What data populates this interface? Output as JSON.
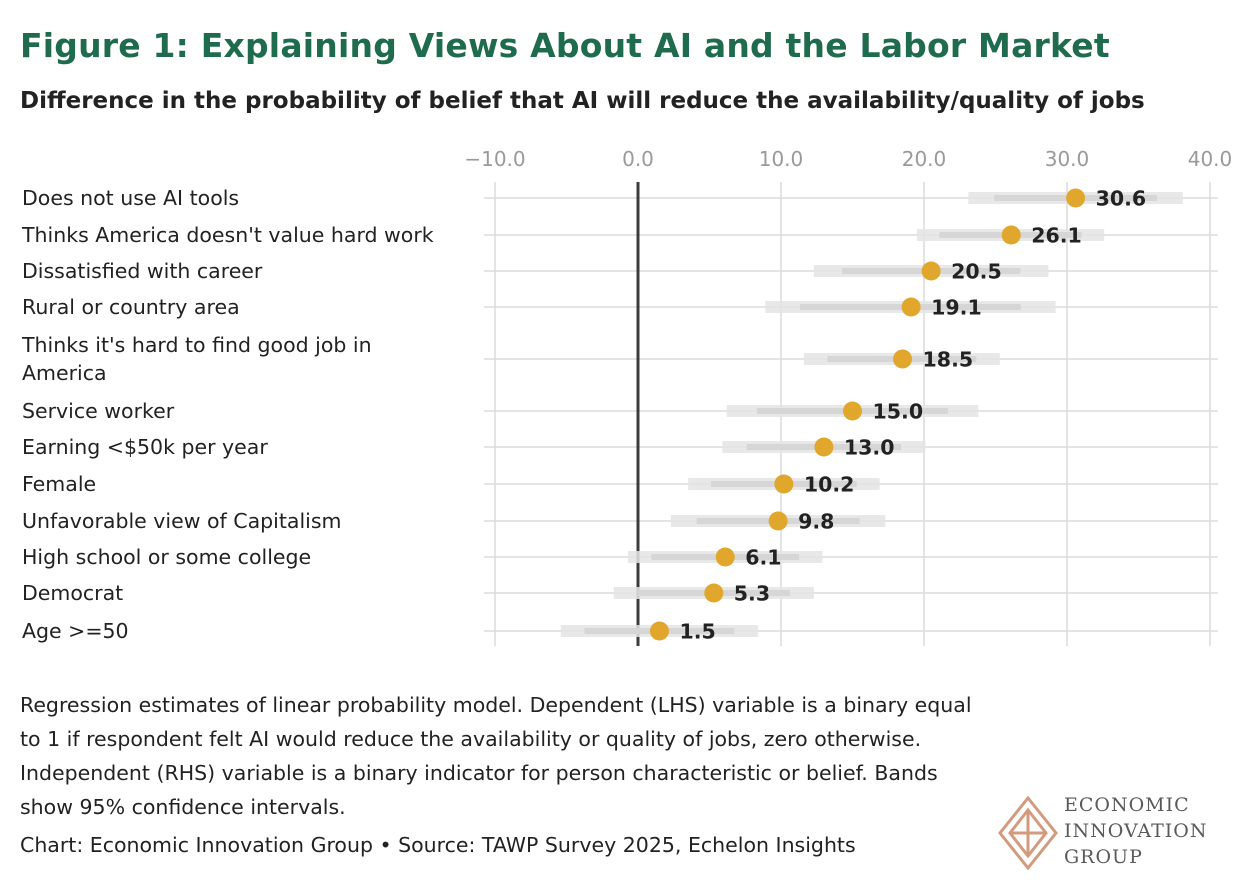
{
  "title": "Figure 1: Explaining Views About AI and the Labor Market",
  "subtitle": "Difference in the probability of belief that AI will reduce the availability/quality of jobs",
  "chart_data": {
    "type": "dot-range",
    "title": "Figure 1: Explaining Views About AI and the Labor Market",
    "subtitle": "Difference in the probability of belief that AI will reduce the availability/quality of jobs",
    "xlim": [
      -10,
      40
    ],
    "xticks": [
      -10,
      0,
      10,
      20,
      30,
      40
    ],
    "xtick_labels": [
      "−10.0",
      "0.0",
      "10.0",
      "20.0",
      "30.0",
      "40.0"
    ],
    "grid": true,
    "categories": [
      "Does not use AI tools",
      "Thinks America doesn't value hard work",
      "Dissatisfied with career",
      "Rural or country area",
      "Thinks it's hard to find good job in America",
      "Service worker",
      "Earning <$50k per year",
      "Female",
      "Unfavorable view of Capitalism",
      "High school or some college",
      "Democrat",
      "Age >=50"
    ],
    "values": [
      30.6,
      26.1,
      20.5,
      19.1,
      18.5,
      15.0,
      13.0,
      10.2,
      9.8,
      6.1,
      5.3,
      1.5
    ],
    "value_labels": [
      "30.6",
      "26.1",
      "20.5",
      "19.1",
      "18.5",
      "15.0",
      "13.0",
      "10.2",
      "9.8",
      "6.1",
      "5.3",
      "1.5"
    ],
    "ci_low": [
      23.1,
      19.5,
      12.3,
      8.9,
      11.6,
      6.2,
      5.9,
      3.5,
      2.3,
      -0.7,
      -1.7,
      -5.4
    ],
    "ci_high": [
      38.1,
      32.6,
      28.7,
      29.2,
      25.3,
      23.8,
      20.1,
      16.9,
      17.3,
      12.9,
      12.3,
      8.4
    ],
    "series_color": "#e0a72c",
    "band_color": "#e4e4e4"
  },
  "note": "Regression estimates of linear probability model. Dependent (LHS) variable is a binary equal to 1 if respondent felt AI would reduce the availability or quality of jobs, zero otherwise. Independent (RHS) variable is a binary indicator for person characteristic or belief. Bands show 95% confidence intervals.",
  "source": "Chart: Economic Innovation Group • Source: TAWP Survey 2025, Echelon Insights",
  "logo": {
    "line1": "ECONOMIC",
    "line2": "INNOVATION",
    "line3": "GROUP",
    "color": "#d49a7d"
  }
}
